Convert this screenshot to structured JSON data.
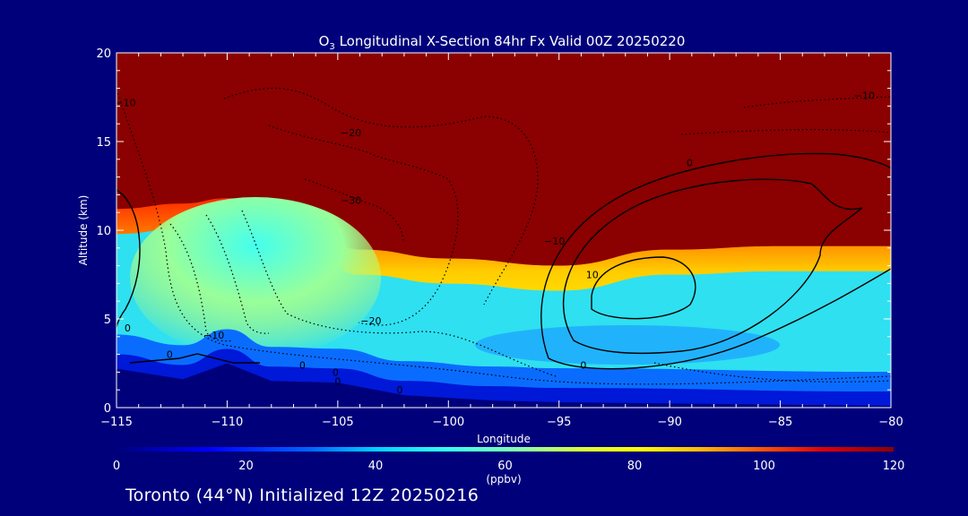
{
  "chart_data": {
    "type": "heatmap",
    "title_prefix": "O",
    "title_subscript": "3",
    "title_rest": " Longitudinal X-Section 84hr  Fx Valid 00Z 20250220",
    "xlabel": "Longitude",
    "ylabel": "Altitude (km)",
    "xlim": [
      -115,
      -80
    ],
    "ylim": [
      0,
      20
    ],
    "x_ticks": [
      -115,
      -110,
      -105,
      -100,
      -95,
      -90,
      -85,
      -80
    ],
    "x_tick_labels": [
      "−115",
      "−110",
      "−105",
      "−100",
      "−95",
      "−90",
      "−85",
      "−80"
    ],
    "y_ticks": [
      0,
      5,
      10,
      15,
      20
    ],
    "y_tick_labels": [
      "0",
      "5",
      "10",
      "15",
      "20"
    ],
    "colorbar": {
      "min": 0,
      "max": 120,
      "ticks": [
        0,
        20,
        40,
        60,
        80,
        100,
        120
      ],
      "tick_labels": [
        "0",
        "20",
        "40",
        "60",
        "80",
        "100",
        "120"
      ],
      "unit": "(ppbv)"
    },
    "ozone_field": {
      "description_levels_ppbv": [
        0,
        120
      ],
      "tropopause_altitude_km_by_longitude": [
        {
          "lon": -115,
          "alt": 10.7
        },
        {
          "lon": -112,
          "alt": 11.0
        },
        {
          "lon": -110,
          "alt": 11.3
        },
        {
          "lon": -108,
          "alt": 11.0
        },
        {
          "lon": -106,
          "alt": 9.3
        },
        {
          "lon": -104,
          "alt": 8.4
        },
        {
          "lon": -100,
          "alt": 7.9
        },
        {
          "lon": -95,
          "alt": 7.5
        },
        {
          "lon": -90,
          "alt": 8.4
        },
        {
          "lon": -85,
          "alt": 8.6
        },
        {
          "lon": -80,
          "alt": 8.6
        }
      ],
      "terrain_altitude_km_by_longitude": [
        {
          "lon": -115,
          "alt": 2.2
        },
        {
          "lon": -112,
          "alt": 1.6
        },
        {
          "lon": -110,
          "alt": 2.5
        },
        {
          "lon": -108,
          "alt": 1.5
        },
        {
          "lon": -105,
          "alt": 1.4
        },
        {
          "lon": -102,
          "alt": 0.7
        },
        {
          "lon": -98,
          "alt": 0.4
        },
        {
          "lon": -95,
          "alt": 0.3
        },
        {
          "lon": -80,
          "alt": 0.1
        }
      ]
    },
    "contours": [
      {
        "level": "-10",
        "style": "dotted"
      },
      {
        "level": "-20",
        "style": "dotted"
      },
      {
        "level": "-30",
        "style": "dotted"
      },
      {
        "level": "0",
        "style": "solid"
      },
      {
        "level": "10",
        "style": "solid"
      }
    ],
    "contour_labels": [
      {
        "text": "−10",
        "lon": -114.6,
        "alt": 17.0
      },
      {
        "text": "−20",
        "lon": -104.4,
        "alt": 15.3
      },
      {
        "text": "−30",
        "lon": -104.4,
        "alt": 11.5
      },
      {
        "text": "−10",
        "lon": -95.2,
        "alt": 9.2
      },
      {
        "text": "−20",
        "lon": -103.5,
        "alt": 4.7
      },
      {
        "text": "−10",
        "lon": -110.6,
        "alt": 3.9
      },
      {
        "text": "−10",
        "lon": -81.2,
        "alt": 17.4
      },
      {
        "text": "0",
        "lon": -112.6,
        "alt": 2.8
      },
      {
        "text": "0",
        "lon": -106.6,
        "alt": 2.2
      },
      {
        "text": "0",
        "lon": -105.1,
        "alt": 1.8
      },
      {
        "text": "0",
        "lon": -105.0,
        "alt": 1.3
      },
      {
        "text": "0",
        "lon": -102.2,
        "alt": 0.8
      },
      {
        "text": "0",
        "lon": -114.5,
        "alt": 4.3
      },
      {
        "text": "0",
        "lon": -89.1,
        "alt": 13.6
      },
      {
        "text": "0",
        "lon": -93.9,
        "alt": 2.2
      },
      {
        "text": "10",
        "lon": -93.5,
        "alt": 7.3
      }
    ]
  },
  "footer_text": "Toronto (44°N) Initialized 12Z 20250216"
}
